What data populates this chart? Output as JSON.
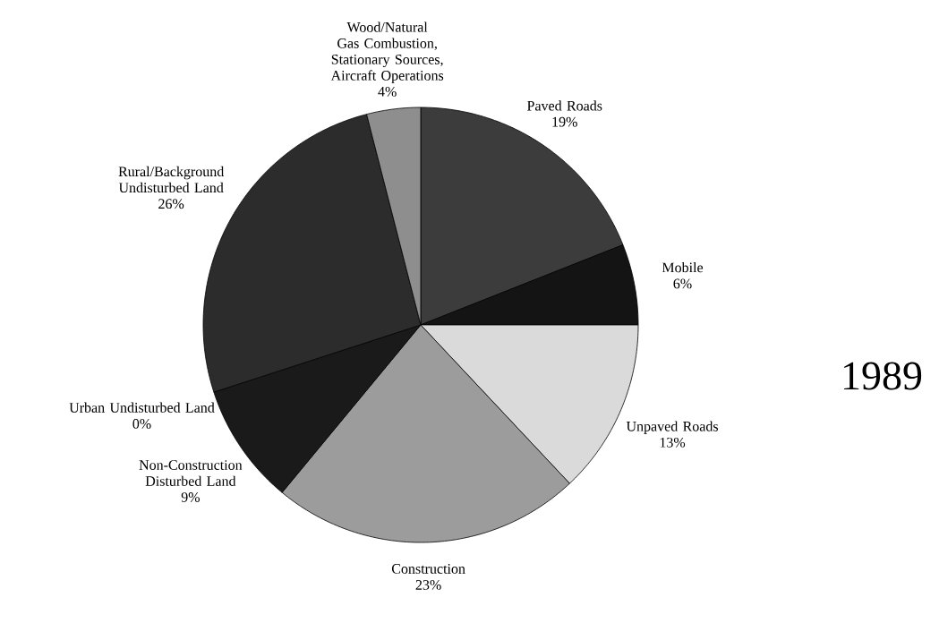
{
  "chart_data": {
    "type": "pie",
    "title": "1989",
    "categories": [
      "Paved Roads",
      "Mobile",
      "Unpaved Roads",
      "Construction",
      "Non-Construction Disturbed Land",
      "Urban Undisturbed Land",
      "Rural/Background Undisturbed Land",
      "Wood/Natural Gas Combustion, Stationary Sources, Aircraft Operations"
    ],
    "values": [
      19,
      6,
      13,
      23,
      9,
      0,
      26,
      4
    ],
    "value_labels": [
      "19%",
      "6%",
      "13%",
      "23%",
      "9%",
      "0%",
      "26%",
      "4%"
    ],
    "colors": [
      "#3c3c3c",
      "#141414",
      "#dadada",
      "#9c9c9c",
      "#1a1a1a",
      "#505050",
      "#2c2c2c",
      "#8e8e8e"
    ]
  }
}
